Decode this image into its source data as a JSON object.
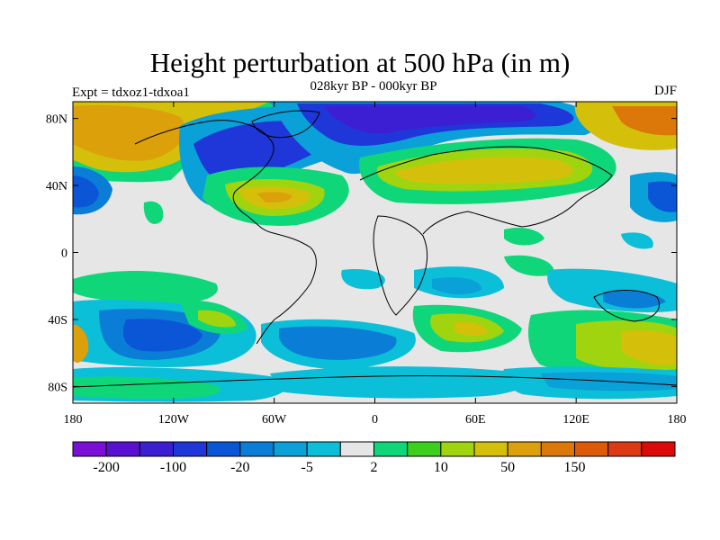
{
  "header": {
    "title": "Height perturbation at 500 hPa (in m)",
    "subtitle": "028kyr BP - 000kyr BP",
    "left_label": "Expt = tdxoz1-tdxoa1",
    "right_label": "DJF"
  },
  "axes": {
    "y_ticks": [
      {
        "lat": 80,
        "label": "80N"
      },
      {
        "lat": 40,
        "label": "40N"
      },
      {
        "lat": 0,
        "label": "0"
      },
      {
        "lat": -40,
        "label": "40S"
      },
      {
        "lat": -80,
        "label": "80S"
      }
    ],
    "x_ticks": [
      {
        "lon": -180,
        "label": "180"
      },
      {
        "lon": -120,
        "label": "120W"
      },
      {
        "lon": -60,
        "label": "60W"
      },
      {
        "lon": 0,
        "label": "0"
      },
      {
        "lon": 60,
        "label": "60E"
      },
      {
        "lon": 120,
        "label": "120E"
      },
      {
        "lon": 180,
        "label": "180"
      }
    ],
    "lat_range": [
      -90,
      90
    ],
    "lon_range": [
      -180,
      180
    ]
  },
  "colorbar": {
    "colors": [
      "#7b0fd8",
      "#5a10d0",
      "#3c1fd3",
      "#1f37d8",
      "#0a56d6",
      "#0a7ed6",
      "#0aa0d8",
      "#0bbfd8",
      "#e6e6e6",
      "#10d67a",
      "#3ccf1e",
      "#a0d40e",
      "#d4c00a",
      "#dca00a",
      "#dc780a",
      "#dc5a0a",
      "#dc3a14",
      "#dc0a0a"
    ],
    "labels": [
      {
        "after_box": 1,
        "text": "-200"
      },
      {
        "after_box": 3,
        "text": "-100"
      },
      {
        "after_box": 5,
        "text": "-20"
      },
      {
        "after_box": 7,
        "text": "-5"
      },
      {
        "after_box": 9,
        "text": "2"
      },
      {
        "after_box": 11,
        "text": "10"
      },
      {
        "after_box": 13,
        "text": "50"
      },
      {
        "after_box": 15,
        "text": "150"
      }
    ]
  }
}
